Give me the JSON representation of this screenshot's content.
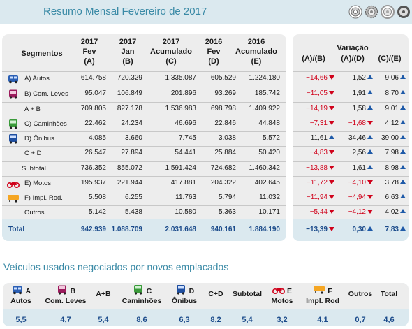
{
  "title": "Resumo Mensal Fevereiro de 2017",
  "colors": {
    "accent": "#3a8aa6",
    "panel": "#ededed",
    "highlight": "#dbe9ef",
    "negative": "#d0021b",
    "up_arrow": "#1e5aa8"
  },
  "headers": {
    "segmentos": "Segmentos",
    "c1": [
      "2017",
      "Fev",
      "(A)"
    ],
    "c2": [
      "2017",
      "Jan",
      "(B)"
    ],
    "c3": [
      "2017",
      "Acumulado",
      "(C)"
    ],
    "c4": [
      "2016",
      "Fev",
      "(D)"
    ],
    "c5": [
      "2016",
      "Acumulado",
      "(E)"
    ],
    "variacao": "Variação",
    "v1": "(A)/(B)",
    "v2": "(A)/(D)",
    "v3": "(C)/(E)"
  },
  "rows": [
    {
      "label": "A) Autos",
      "icon": "car-icon",
      "v": [
        "614.758",
        "720.329",
        "1.335.087",
        "605.529",
        "1.224.180"
      ],
      "var": [
        "−14,66",
        "1,52",
        "9,06"
      ],
      "dir": [
        "down",
        "up",
        "up"
      ]
    },
    {
      "label": "B) Com. Leves",
      "icon": "van-icon",
      "v": [
        "95.047",
        "106.849",
        "201.896",
        "93.269",
        "185.742"
      ],
      "var": [
        "−11,05",
        "1,91",
        "8,70"
      ],
      "dir": [
        "down",
        "up",
        "up"
      ]
    },
    {
      "label": "A + B",
      "icon": "",
      "v": [
        "709.805",
        "827.178",
        "1.536.983",
        "698.798",
        "1.409.922"
      ],
      "var": [
        "−14,19",
        "1,58",
        "9,01"
      ],
      "dir": [
        "down",
        "up",
        "up"
      ]
    },
    {
      "label": "C) Caminhões",
      "icon": "truck-icon",
      "v": [
        "22.462",
        "24.234",
        "46.696",
        "22.846",
        "44.848"
      ],
      "var": [
        "−7,31",
        "−1,68",
        "4,12"
      ],
      "dir": [
        "down",
        "down",
        "up"
      ]
    },
    {
      "label": "D) Ônibus",
      "icon": "bus-icon",
      "v": [
        "4.085",
        "3.660",
        "7.745",
        "3.038",
        "5.572"
      ],
      "var": [
        "11,61",
        "34,46",
        "39,00"
      ],
      "dir": [
        "up",
        "up",
        "up"
      ]
    },
    {
      "label": "C + D",
      "icon": "",
      "v": [
        "26.547",
        "27.894",
        "54.441",
        "25.884",
        "50.420"
      ],
      "var": [
        "−4,83",
        "2,56",
        "7,98"
      ],
      "dir": [
        "down",
        "up",
        "up"
      ]
    },
    {
      "label": "Subtotal",
      "icon": "",
      "v": [
        "736.352",
        "855.072",
        "1.591.424",
        "724.682",
        "1.460.342"
      ],
      "var": [
        "−13,88",
        "1,61",
        "8,98"
      ],
      "dir": [
        "down",
        "up",
        "up"
      ]
    },
    {
      "label": "E) Motos",
      "icon": "motorcycle-icon",
      "v": [
        "195.937",
        "221.944",
        "417.881",
        "204.322",
        "402.645"
      ],
      "var": [
        "−11,72",
        "−4,10",
        "3,78"
      ],
      "dir": [
        "down",
        "down",
        "up"
      ]
    },
    {
      "label": "F) Impl. Rod.",
      "icon": "trailer-icon",
      "v": [
        "5.508",
        "6.255",
        "11.763",
        "5.794",
        "11.032"
      ],
      "var": [
        "−11,94",
        "−4,94",
        "6,63"
      ],
      "dir": [
        "down",
        "down",
        "up"
      ]
    },
    {
      "label": "Outros",
      "icon": "",
      "v": [
        "5.142",
        "5.438",
        "10.580",
        "5.363",
        "10.171"
      ],
      "var": [
        "−5,44",
        "−4,12",
        "4,02"
      ],
      "dir": [
        "down",
        "down",
        "up"
      ]
    }
  ],
  "total": {
    "label": "Total",
    "v": [
      "942.939",
      "1.088.709",
      "2.031.648",
      "940.161",
      "1.884.190"
    ],
    "var": [
      "−13,39",
      "0,30",
      "7,83"
    ],
    "dir": [
      "down",
      "up",
      "up"
    ]
  },
  "used_title": "Veículos usados negociados por novos emplacados",
  "used": {
    "cols": [
      {
        "l1": "A",
        "l2": "Autos",
        "icon": "car-icon",
        "val": "5,5"
      },
      {
        "l1": "B",
        "l2": "Com. Leves",
        "icon": "van-icon",
        "val": "4,7"
      },
      {
        "l1": "",
        "l2": "A+B",
        "icon": "",
        "val": "5,4"
      },
      {
        "l1": "C",
        "l2": "Caminhões",
        "icon": "truck-icon",
        "val": "8,6"
      },
      {
        "l1": "D",
        "l2": "Ônibus",
        "icon": "bus-icon",
        "val": "6,3"
      },
      {
        "l1": "",
        "l2": "C+D",
        "icon": "",
        "val": "8,2"
      },
      {
        "l1": "",
        "l2": "Subtotal",
        "icon": "",
        "val": "5,4"
      },
      {
        "l1": "E",
        "l2": "Motos",
        "icon": "motorcycle-icon",
        "val": "3,2"
      },
      {
        "l1": "F",
        "l2": "Impl. Rod",
        "icon": "trailer-icon",
        "val": "4,1"
      },
      {
        "l1": "",
        "l2": "Outros",
        "icon": "",
        "val": "0,7"
      },
      {
        "l1": "",
        "l2": "Total",
        "icon": "",
        "val": "4,6"
      }
    ]
  }
}
